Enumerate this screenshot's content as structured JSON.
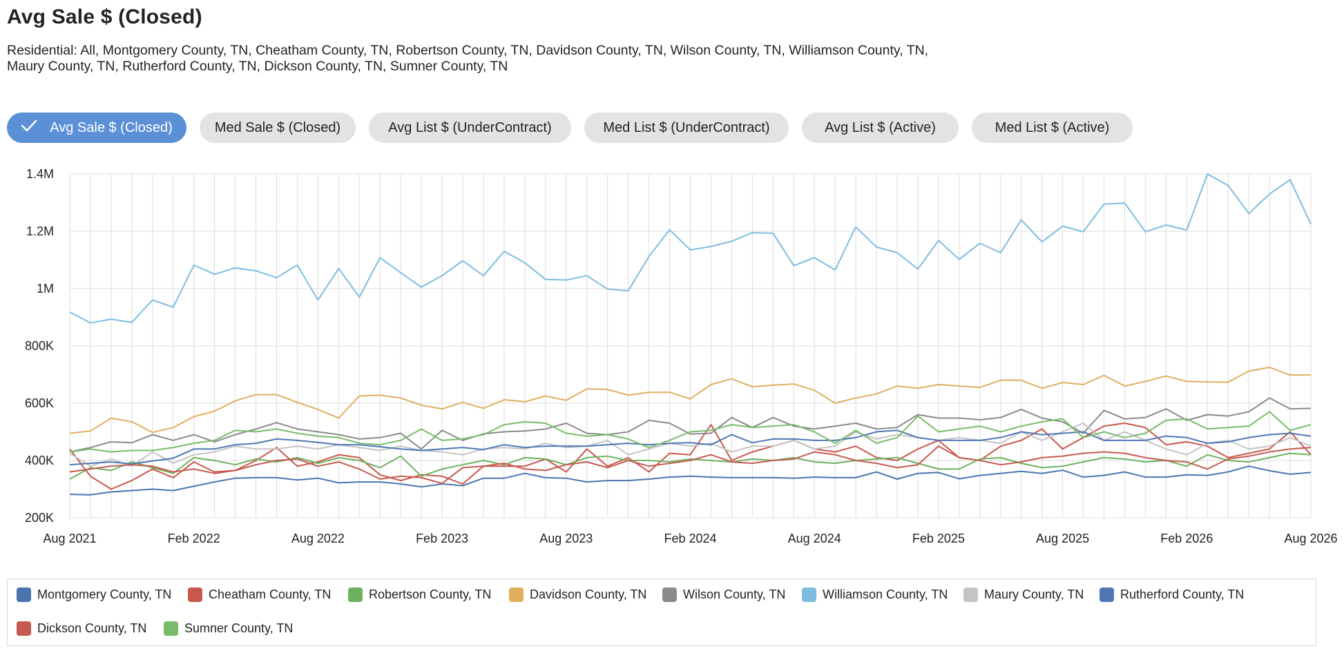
{
  "title": "Avg Sale $ (Closed)",
  "subtitle": "Residential: All, Montgomery County, TN, Cheatham County, TN, Robertson County, TN, Davidson County, TN, Wilson County, TN, Williamson County, TN, Maury County, TN, Rutherford County, TN, Dickson County, TN, Sumner County, TN",
  "tabs": [
    {
      "label": "Avg Sale $ (Closed)",
      "active": true,
      "icon": "check-icon"
    },
    {
      "label": "Med Sale $ (Closed)",
      "active": false
    },
    {
      "label": "Avg List $ (UnderContract)",
      "active": false
    },
    {
      "label": "Med List $ (UnderContract)",
      "active": false
    },
    {
      "label": "Avg List $ (Active)",
      "active": false
    },
    {
      "label": "Med List $ (Active)",
      "active": false
    }
  ],
  "colors": {
    "active_tab": "#5b8fd6",
    "inactive_tab": "#e3e3e3",
    "grid": "#dcdcdc"
  },
  "chart_data": {
    "type": "line",
    "ylim": [
      200000,
      1400000
    ],
    "yticks": [
      {
        "value": 1400000,
        "label": "1.4M"
      },
      {
        "value": 1200000,
        "label": "1.2M"
      },
      {
        "value": 1000000,
        "label": "1M"
      },
      {
        "value": 800000,
        "label": "800K"
      },
      {
        "value": 600000,
        "label": "600K"
      },
      {
        "value": 400000,
        "label": "400K"
      },
      {
        "value": 200000,
        "label": "200K"
      }
    ],
    "x": [
      "2021-08",
      "2021-09",
      "2021-10",
      "2021-11",
      "2021-12",
      "2022-01",
      "2022-02",
      "2022-03",
      "2022-04",
      "2022-05",
      "2022-06",
      "2022-07",
      "2022-08",
      "2022-09",
      "2022-10",
      "2022-11",
      "2022-12",
      "2023-01",
      "2023-02",
      "2023-03",
      "2023-04",
      "2023-05",
      "2023-06",
      "2023-07",
      "2023-08",
      "2023-09",
      "2023-10",
      "2023-11",
      "2023-12",
      "2024-01",
      "2024-02",
      "2024-03",
      "2024-04",
      "2024-05",
      "2024-06",
      "2024-07",
      "2024-08",
      "2024-09",
      "2024-10",
      "2024-11",
      "2024-12",
      "2025-01",
      "2025-02",
      "2025-03",
      "2025-04",
      "2025-05",
      "2025-06",
      "2025-07",
      "2025-08",
      "2025-09",
      "2025-10",
      "2025-11",
      "2025-12",
      "2026-01",
      "2026-02",
      "2026-03",
      "2026-04",
      "2026-05",
      "2026-06",
      "2026-07",
      "2026-08"
    ],
    "xticks": [
      {
        "index": 0,
        "label": "Aug 2021"
      },
      {
        "index": 6,
        "label": "Feb 2022"
      },
      {
        "index": 12,
        "label": "Aug 2022"
      },
      {
        "index": 18,
        "label": "Feb 2023"
      },
      {
        "index": 24,
        "label": "Aug 2023"
      },
      {
        "index": 30,
        "label": "Feb 2024"
      },
      {
        "index": 36,
        "label": "Aug 2024"
      },
      {
        "index": 42,
        "label": "Feb 2025"
      },
      {
        "index": 48,
        "label": "Aug 2025"
      },
      {
        "index": 54,
        "label": "Feb 2026"
      },
      {
        "index": 60,
        "label": "Aug 2026"
      }
    ],
    "grid": true,
    "legend_position": "bottom",
    "series": [
      {
        "name": "Montgomery County, TN",
        "color": "#4a74b0",
        "values": [
          282000,
          280000,
          290000,
          295000,
          300000,
          295000,
          310000,
          325000,
          338000,
          340000,
          340000,
          332000,
          338000,
          322000,
          325000,
          325000,
          318000,
          308000,
          318000,
          312000,
          338000,
          338000,
          355000,
          340000,
          338000,
          325000,
          330000,
          330000,
          335000,
          342000,
          345000,
          342000,
          340000,
          340000,
          340000,
          338000,
          342000,
          340000,
          340000,
          360000,
          335000,
          355000,
          358000,
          336000,
          348000,
          355000,
          362000,
          355000,
          366000,
          342000,
          348000,
          360000,
          342000,
          342000,
          350000,
          348000,
          360000,
          380000,
          364000,
          352000,
          358000
        ]
      },
      {
        "name": "Cheatham County, TN",
        "color": "#c9574c",
        "values": [
          440000,
          345000,
          300000,
          330000,
          370000,
          340000,
          395000,
          360000,
          365000,
          400000,
          445000,
          380000,
          395000,
          420000,
          410000,
          350000,
          330000,
          350000,
          345000,
          318000,
          380000,
          380000,
          380000,
          405000,
          360000,
          440000,
          380000,
          410000,
          360000,
          425000,
          420000,
          525000,
          400000,
          430000,
          450000,
          470000,
          440000,
          430000,
          450000,
          410000,
          400000,
          440000,
          470000,
          410000,
          400000,
          450000,
          470000,
          510000,
          440000,
          480000,
          520000,
          530000,
          515000,
          455000,
          465000,
          450000,
          410000,
          425000,
          440000,
          500000,
          420000
        ]
      },
      {
        "name": "Robertson County, TN",
        "color": "#6db25f",
        "values": [
          335000,
          375000,
          365000,
          395000,
          375000,
          355000,
          410000,
          400000,
          385000,
          405000,
          395000,
          410000,
          390000,
          410000,
          400000,
          375000,
          415000,
          345000,
          370000,
          385000,
          400000,
          385000,
          410000,
          405000,
          385000,
          410000,
          415000,
          400000,
          400000,
          395000,
          405000,
          400000,
          395000,
          405000,
          400000,
          410000,
          395000,
          390000,
          400000,
          405000,
          410000,
          390000,
          370000,
          370000,
          405000,
          410000,
          390000,
          375000,
          380000,
          395000,
          410000,
          405000,
          395000,
          400000,
          380000,
          420000,
          400000,
          395000,
          410000,
          425000,
          420000
        ]
      },
      {
        "name": "Davidson County, TN",
        "color": "#e0ae5f",
        "values": [
          495000,
          503000,
          548000,
          535000,
          498000,
          515000,
          553000,
          572000,
          608000,
          630000,
          630000,
          603000,
          578000,
          548000,
          625000,
          628000,
          618000,
          593000,
          580000,
          603000,
          582000,
          612000,
          605000,
          625000,
          610000,
          650000,
          648000,
          628000,
          638000,
          638000,
          615000,
          665000,
          685000,
          657000,
          663000,
          667000,
          645000,
          600000,
          618000,
          632000,
          660000,
          652000,
          665000,
          660000,
          655000,
          680000,
          680000,
          652000,
          672000,
          665000,
          697000,
          660000,
          676000,
          695000,
          676000,
          674000,
          673000,
          712000,
          725000,
          698000,
          698000
        ]
      },
      {
        "name": "Wilson County, TN",
        "color": "#8a8a8a",
        "values": [
          430000,
          445000,
          465000,
          462000,
          490000,
          470000,
          490000,
          465000,
          490000,
          510000,
          532000,
          510000,
          500000,
          490000,
          475000,
          480000,
          495000,
          440000,
          505000,
          470000,
          493000,
          500000,
          503000,
          510000,
          530000,
          495000,
          490000,
          500000,
          540000,
          530000,
          492000,
          495000,
          550000,
          515000,
          550000,
          520000,
          510000,
          520000,
          530000,
          510000,
          515000,
          560000,
          548000,
          548000,
          542000,
          550000,
          578000,
          548000,
          535000,
          495000,
          575000,
          545000,
          550000,
          580000,
          540000,
          560000,
          555000,
          570000,
          618000,
          580000,
          582000
        ]
      },
      {
        "name": "Williamson County, TN",
        "color": "#7cbde0",
        "values": [
          918000,
          880000,
          893000,
          882000,
          960000,
          935000,
          1082000,
          1050000,
          1072000,
          1062000,
          1038000,
          1082000,
          960000,
          1070000,
          970000,
          1108000,
          1055000,
          1005000,
          1045000,
          1097000,
          1045000,
          1130000,
          1090000,
          1032000,
          1030000,
          1045000,
          998000,
          992000,
          1112000,
          1205000,
          1135000,
          1147000,
          1165000,
          1195000,
          1193000,
          1080000,
          1108000,
          1065000,
          1215000,
          1145000,
          1125000,
          1068000,
          1168000,
          1102000,
          1158000,
          1125000,
          1240000,
          1163000,
          1218000,
          1198000,
          1295000,
          1298000,
          1198000,
          1222000,
          1204000,
          1400000,
          1360000,
          1262000,
          1330000,
          1380000,
          1225000
        ]
      },
      {
        "name": "Maury County, TN",
        "color": "#c4c4c4",
        "values": [
          425000,
          380000,
          405000,
          380000,
          430000,
          390000,
          420000,
          430000,
          450000,
          440000,
          440000,
          450000,
          440000,
          455000,
          445000,
          435000,
          450000,
          435000,
          430000,
          420000,
          440000,
          445000,
          440000,
          460000,
          445000,
          450000,
          470000,
          420000,
          440000,
          460000,
          450000,
          460000,
          430000,
          450000,
          450000,
          470000,
          440000,
          450000,
          500000,
          475000,
          490000,
          480000,
          470000,
          480000,
          470000,
          460000,
          500000,
          470000,
          500000,
          530000,
          470000,
          500000,
          470000,
          440000,
          420000,
          460000,
          470000,
          440000,
          450000,
          480000,
          450000
        ]
      },
      {
        "name": "Rutherford County, TN",
        "color": "#4f77b4",
        "values": [
          385000,
          390000,
          395000,
          388000,
          398000,
          408000,
          440000,
          440000,
          455000,
          460000,
          475000,
          470000,
          463000,
          455000,
          455000,
          448000,
          440000,
          435000,
          440000,
          445000,
          438000,
          455000,
          445000,
          450000,
          450000,
          450000,
          455000,
          460000,
          455000,
          460000,
          462000,
          455000,
          490000,
          462000,
          475000,
          475000,
          470000,
          470000,
          480000,
          500000,
          505000,
          480000,
          470000,
          470000,
          470000,
          480000,
          500000,
          490000,
          495000,
          500000,
          470000,
          470000,
          470000,
          485000,
          480000,
          460000,
          465000,
          480000,
          490000,
          495000,
          485000
        ]
      },
      {
        "name": "Dickson County, TN",
        "color": "#c55a51",
        "values": [
          360000,
          370000,
          380000,
          385000,
          380000,
          360000,
          370000,
          355000,
          365000,
          385000,
          400000,
          405000,
          380000,
          395000,
          370000,
          335000,
          345000,
          340000,
          320000,
          375000,
          380000,
          390000,
          370000,
          365000,
          385000,
          395000,
          375000,
          400000,
          380000,
          390000,
          400000,
          420000,
          395000,
          390000,
          400000,
          405000,
          430000,
          420000,
          400000,
          390000,
          375000,
          385000,
          450000,
          410000,
          400000,
          385000,
          395000,
          410000,
          415000,
          425000,
          430000,
          425000,
          410000,
          400000,
          395000,
          370000,
          405000,
          415000,
          430000,
          440000,
          445000
        ]
      },
      {
        "name": "Sumner County, TN",
        "color": "#78bc6a",
        "values": [
          430000,
          440000,
          430000,
          435000,
          435000,
          445000,
          460000,
          470000,
          505000,
          500000,
          510000,
          495000,
          485000,
          480000,
          460000,
          455000,
          470000,
          510000,
          470000,
          475000,
          490000,
          525000,
          535000,
          530000,
          495000,
          485000,
          490000,
          475000,
          445000,
          470000,
          500000,
          505000,
          525000,
          515000,
          520000,
          525000,
          500000,
          460000,
          505000,
          460000,
          480000,
          555000,
          500000,
          510000,
          520000,
          500000,
          520000,
          535000,
          545000,
          480000,
          500000,
          480000,
          495000,
          540000,
          545000,
          510000,
          515000,
          520000,
          570000,
          505000,
          525000
        ]
      }
    ]
  }
}
